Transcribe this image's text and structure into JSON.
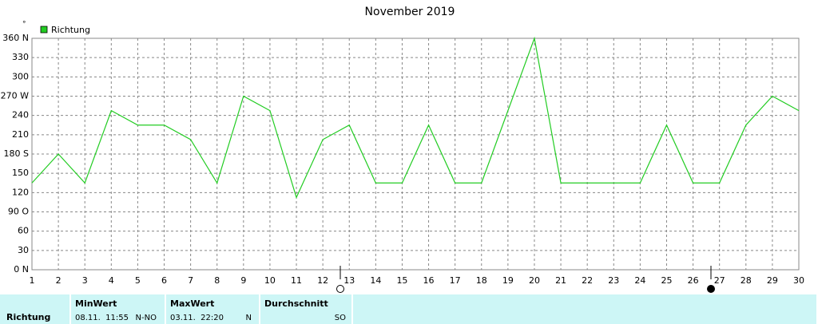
{
  "chart_data": {
    "type": "line",
    "title": "November 2019",
    "y_unit": "°",
    "x": [
      1,
      2,
      3,
      4,
      5,
      6,
      7,
      8,
      9,
      10,
      11,
      12,
      13,
      14,
      15,
      16,
      17,
      18,
      19,
      20,
      21,
      22,
      23,
      24,
      25,
      26,
      27,
      28,
      29,
      30
    ],
    "series": [
      {
        "name": "Richtung",
        "color": "#22cc22",
        "values": [
          135,
          180,
          135,
          247.5,
          225,
          225,
          202.5,
          135,
          270,
          247.5,
          112.5,
          202.5,
          225,
          135,
          135,
          225,
          135,
          135,
          247.5,
          360,
          135,
          135,
          135,
          135,
          225,
          135,
          135,
          225,
          270,
          247.5
        ]
      }
    ],
    "xlim": [
      1,
      30
    ],
    "xticks": [
      1,
      2,
      3,
      4,
      5,
      6,
      7,
      8,
      9,
      10,
      11,
      12,
      13,
      14,
      15,
      16,
      17,
      18,
      19,
      20,
      21,
      22,
      23,
      24,
      25,
      26,
      27,
      28,
      29,
      30
    ],
    "ylim": [
      0,
      360
    ],
    "yticks": [
      {
        "value": 0,
        "label": "0  N"
      },
      30,
      60,
      {
        "value": 90,
        "label": "90  O"
      },
      120,
      150,
      {
        "value": 180,
        "label": "180 S"
      },
      210,
      240,
      {
        "value": 270,
        "label": "270 W"
      },
      300,
      330,
      {
        "value": 360,
        "label": "360 N"
      }
    ],
    "grid": true
  },
  "table": {
    "row_label": "Richtung",
    "columns": [
      {
        "header": "MinWert",
        "when": "08.11.  11:55",
        "value": "N-NO"
      },
      {
        "header": "MaxWert",
        "when": "03.11.  22:20",
        "value": "N"
      },
      {
        "header": "Durchschnitt",
        "value": "SO"
      }
    ]
  }
}
